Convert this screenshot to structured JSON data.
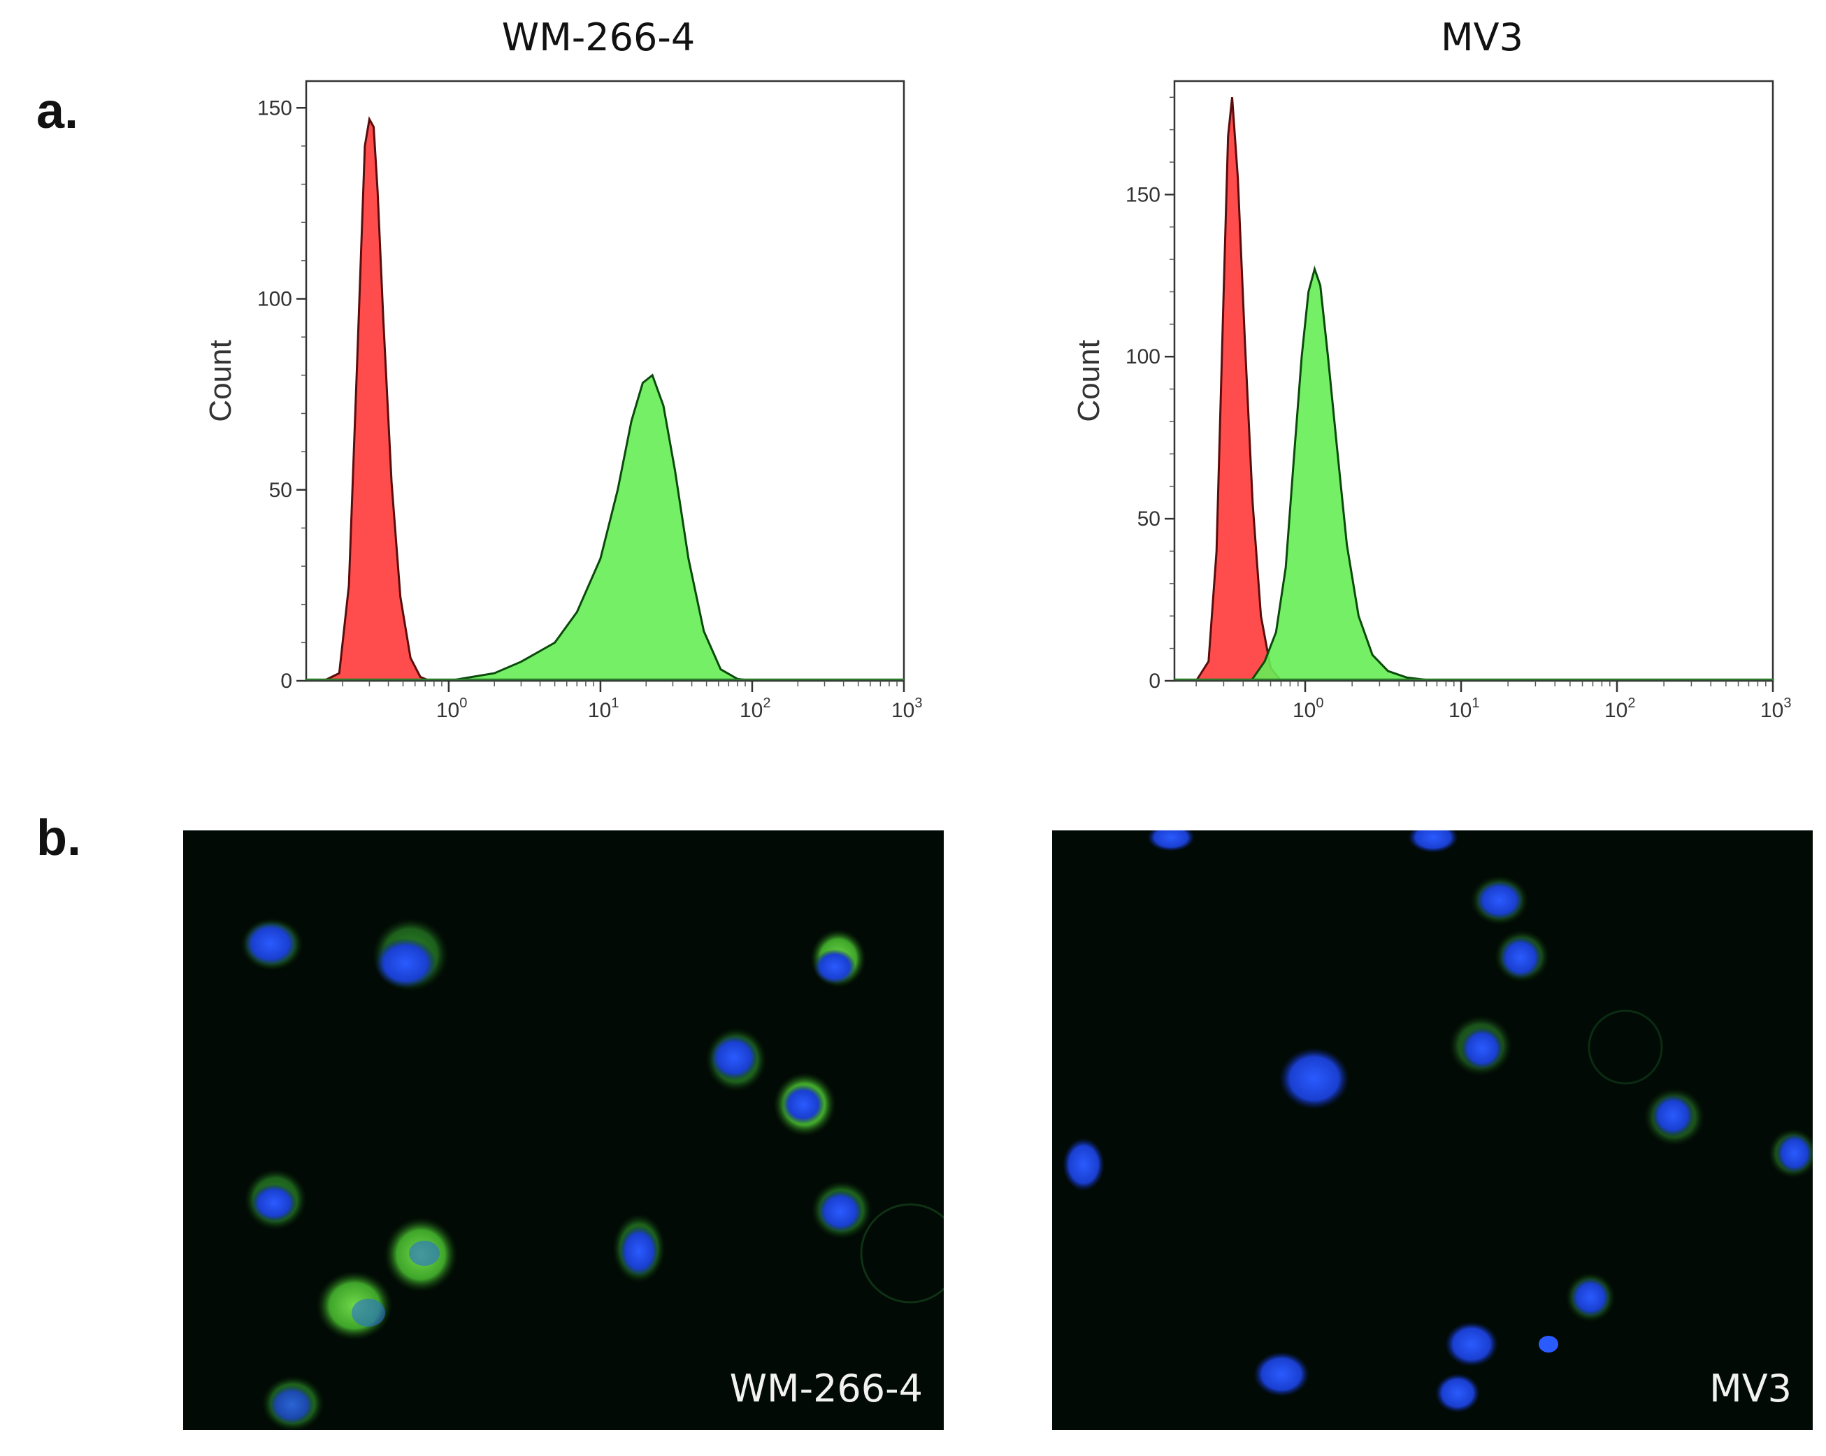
{
  "figure": {
    "panel_a_label": "a.",
    "panel_b_label": "b."
  },
  "chart_data": [
    {
      "type": "area",
      "title": "WM-266-4",
      "xlabel": "",
      "ylabel": "Count",
      "x_scale": "log",
      "xlim": [
        0.115,
        1000
      ],
      "ylim": [
        0,
        157
      ],
      "yticks": [
        0,
        50,
        100,
        150
      ],
      "xticks": [
        {
          "value": 1,
          "label": "10",
          "exp": "0"
        },
        {
          "value": 10,
          "label": "10",
          "exp": "1"
        },
        {
          "value": 100,
          "label": "10",
          "exp": "2"
        },
        {
          "value": 1000,
          "label": "10",
          "exp": "3"
        }
      ],
      "grid": false,
      "series": [
        {
          "color": "#ff4d4d",
          "line_color": "#5a0d0d",
          "x": [
            0.15,
            0.19,
            0.22,
            0.25,
            0.28,
            0.3,
            0.32,
            0.34,
            0.37,
            0.42,
            0.48,
            0.56,
            0.65,
            0.75
          ],
          "y": [
            0,
            2,
            25,
            85,
            140,
            147,
            145,
            128,
            95,
            52,
            22,
            6,
            1,
            0
          ]
        },
        {
          "color": "#66ee55",
          "line_color": "#0a4a0a",
          "x": [
            1,
            2,
            3,
            5,
            7,
            10,
            13,
            16,
            19,
            22,
            26,
            31,
            38,
            48,
            62,
            80,
            100
          ],
          "y": [
            0,
            2,
            5,
            10,
            18,
            32,
            50,
            68,
            78,
            80,
            72,
            55,
            32,
            13,
            3,
            0.5,
            0
          ]
        }
      ]
    },
    {
      "type": "area",
      "title": "MV3",
      "xlabel": "",
      "ylabel": "Count",
      "x_scale": "log",
      "xlim": [
        0.145,
        1000
      ],
      "ylim": [
        0,
        185
      ],
      "yticks": [
        0,
        50,
        100,
        150
      ],
      "xticks": [
        {
          "value": 1,
          "label": "10",
          "exp": "0"
        },
        {
          "value": 10,
          "label": "10",
          "exp": "1"
        },
        {
          "value": 100,
          "label": "10",
          "exp": "2"
        },
        {
          "value": 1000,
          "label": "10",
          "exp": "3"
        }
      ],
      "grid": false,
      "series": [
        {
          "color": "#ff4d4d",
          "line_color": "#5a0d0d",
          "x": [
            0.2,
            0.24,
            0.27,
            0.3,
            0.32,
            0.34,
            0.37,
            0.41,
            0.46,
            0.52,
            0.6,
            0.7
          ],
          "y": [
            0,
            6,
            40,
            120,
            168,
            180,
            155,
            105,
            55,
            20,
            4,
            0
          ]
        },
        {
          "color": "#66ee55",
          "line_color": "#0a4a0a",
          "x": [
            0.45,
            0.55,
            0.65,
            0.75,
            0.85,
            0.95,
            1.05,
            1.15,
            1.25,
            1.4,
            1.6,
            1.85,
            2.2,
            2.7,
            3.4,
            4.5,
            6,
            9
          ],
          "y": [
            0,
            6,
            15,
            35,
            70,
            100,
            120,
            127,
            122,
            100,
            72,
            42,
            20,
            8,
            3,
            1,
            0.3,
            0
          ]
        }
      ]
    }
  ],
  "micrographs": [
    {
      "label": "WM-266-4"
    },
    {
      "label": "MV3"
    }
  ]
}
